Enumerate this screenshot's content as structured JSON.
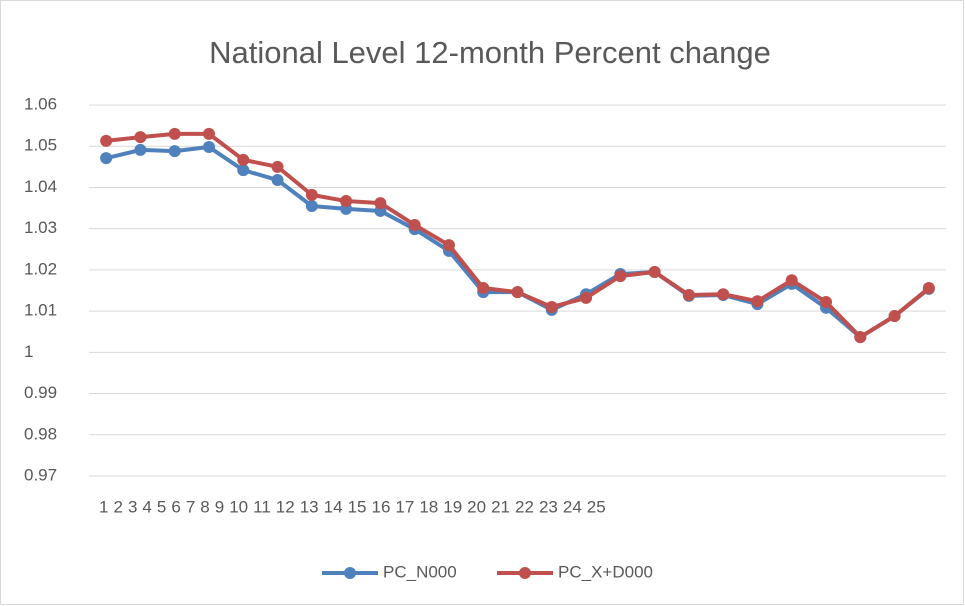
{
  "chart_data": {
    "type": "line",
    "title": "National Level 12-month Percent change",
    "categories": [
      "1",
      "2",
      "3",
      "4",
      "5",
      "6",
      "7",
      "8",
      "9",
      "10",
      "11",
      "12",
      "13",
      "14",
      "15",
      "16",
      "17",
      "18",
      "19",
      "20",
      "21",
      "22",
      "23",
      "24",
      "25"
    ],
    "series": [
      {
        "name": "PC_N000",
        "color": "#4f81bd",
        "values": [
          1.0471,
          1.0491,
          1.0488,
          1.0498,
          1.0442,
          1.0418,
          1.0355,
          1.0348,
          1.0343,
          1.0299,
          1.0246,
          1.0146,
          1.0146,
          1.0103,
          1.0141,
          1.019,
          1.0195,
          1.0137,
          1.0139,
          1.0117,
          1.0166,
          1.0108,
          1.0037,
          1.0088,
          1.0154
        ]
      },
      {
        "name": "PC_X+D000",
        "color": "#c0504d",
        "values": [
          1.0513,
          1.0522,
          1.053,
          1.053,
          1.0467,
          1.045,
          1.0382,
          1.0367,
          1.0362,
          1.0309,
          1.026,
          1.0156,
          1.0146,
          1.011,
          1.0132,
          1.0185,
          1.0195,
          1.0139,
          1.0141,
          1.0124,
          1.0175,
          1.0122,
          1.0037,
          1.0088,
          1.0156
        ]
      }
    ],
    "ylim": [
      0.97,
      1.06
    ],
    "yticks": [
      0.97,
      0.98,
      0.99,
      1,
      1.01,
      1.02,
      1.03,
      1.04,
      1.05,
      1.06
    ],
    "grid": true,
    "legend": "bottom"
  }
}
